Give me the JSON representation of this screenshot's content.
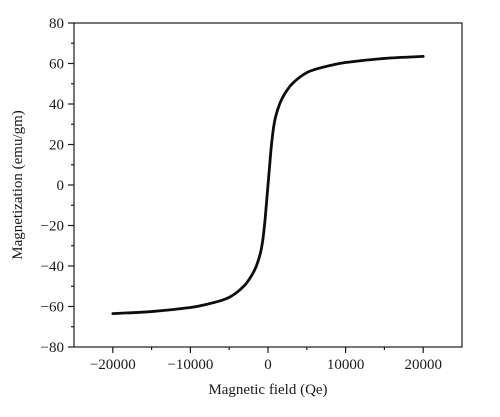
{
  "chart_data": {
    "type": "line",
    "title": "",
    "xlabel": "Magnetic field (Qe)",
    "ylabel": "Magnetization (emu/gm)",
    "xlim": [
      -25000,
      25000
    ],
    "ylim": [
      -80,
      80
    ],
    "x_ticks": [
      -20000,
      -10000,
      0,
      10000,
      20000
    ],
    "x_tick_labels": [
      "−20000",
      "−10000",
      "0",
      "10000",
      "20000"
    ],
    "y_ticks": [
      -80,
      -60,
      -40,
      -20,
      0,
      20,
      40,
      60,
      80
    ],
    "y_tick_labels": [
      "−80",
      "−60",
      "−40",
      "−20",
      "0",
      "20",
      "40",
      "60",
      "80"
    ],
    "grid": false,
    "legend": "none",
    "series": [
      {
        "color": "#0d0d0d",
        "x": [
          -20000,
          -15000,
          -10000,
          -8000,
          -6000,
          -5000,
          -4000,
          -3000,
          -2500,
          -2000,
          -1500,
          -1000,
          -700,
          -400,
          -200,
          0,
          200,
          400,
          700,
          1000,
          1500,
          2000,
          2500,
          3000,
          4000,
          5000,
          6000,
          8000,
          10000,
          15000,
          20000
        ],
        "y": [
          -63.5,
          -62.5,
          -60.5,
          -59,
          -57,
          -55.5,
          -53,
          -49.5,
          -47,
          -44,
          -40,
          -34,
          -28,
          -18,
          -9,
          0,
          9,
          18,
          28,
          34,
          40,
          44,
          47,
          49.5,
          53,
          55.5,
          57,
          59,
          60.5,
          62.5,
          63.5
        ]
      }
    ]
  }
}
